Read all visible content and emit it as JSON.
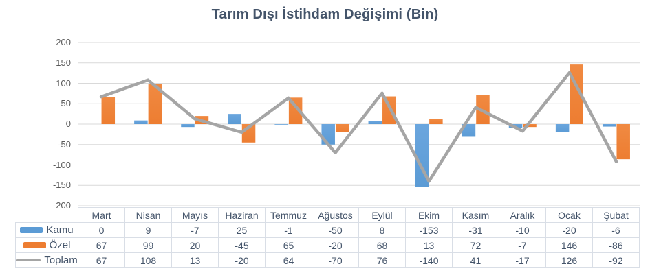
{
  "title": "Tarım Dışı İstihdam Değişimi (Bin)",
  "colors": {
    "kamu_bar": "#5B9BD5",
    "kamu_bar_light": "#6ba6de",
    "ozel_bar": "#ED7D31",
    "ozel_bar_light": "#f08a42",
    "toplam_line": "#A5A5A5",
    "gridline": "#D9D9D9",
    "table_border": "#d9dee6",
    "title_text": "#44546A",
    "axis_text": "#595959",
    "table_text": "#44546A"
  },
  "chart_data": {
    "type": "bar",
    "subtype": "clustered-bars-with-line-overlay",
    "title": "Tarım Dışı İstihdam Değişimi (Bin)",
    "categories": [
      "Mart",
      "Nisan",
      "Mayıs",
      "Haziran",
      "Temmuz",
      "Ağustos",
      "Eylül",
      "Ekim",
      "Kasım",
      "Aralık",
      "Ocak",
      "Şubat"
    ],
    "series": [
      {
        "name": "Kamu",
        "type": "bar",
        "color": "#5B9BD5",
        "values": [
          0,
          9,
          -7,
          25,
          -1,
          -50,
          8,
          -153,
          -31,
          -10,
          -20,
          -6
        ]
      },
      {
        "name": "Özel",
        "type": "bar",
        "color": "#ED7D31",
        "values": [
          67,
          99,
          20,
          -45,
          65,
          -20,
          68,
          13,
          72,
          -7,
          146,
          -86
        ]
      },
      {
        "name": "Toplam",
        "type": "line",
        "color": "#A5A5A5",
        "values": [
          67,
          108,
          13,
          -20,
          64,
          -70,
          76,
          -140,
          41,
          -17,
          126,
          -92
        ]
      }
    ],
    "xlabel": "",
    "ylabel": "",
    "ylim": [
      -200,
      200
    ],
    "y_ticks": [
      200,
      150,
      100,
      50,
      0,
      -50,
      -100,
      -150,
      -200
    ],
    "grid": true,
    "legend_position": "data-table-left-column"
  }
}
